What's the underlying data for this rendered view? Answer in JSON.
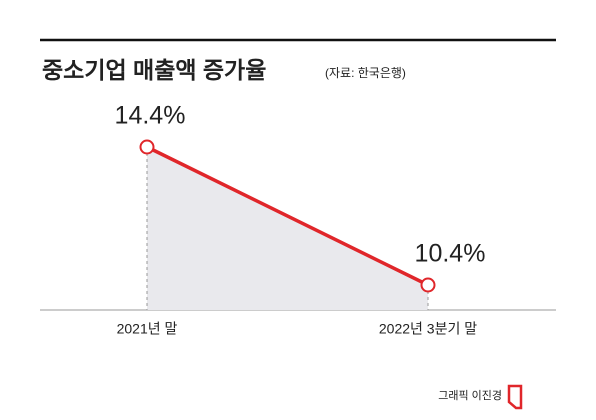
{
  "chart_data": {
    "type": "line",
    "title": "중소기업 매출액 증가율",
    "subtitle": "(자료: 한국은행)",
    "categories": [
      "2021년 말",
      "2022년 3분기 말"
    ],
    "values": [
      14.4,
      10.4
    ],
    "value_labels": [
      "14.4%",
      "10.4%"
    ],
    "color": "#e0262a",
    "area_color": "#e9e9ed",
    "credit": "그래픽 이진경"
  }
}
